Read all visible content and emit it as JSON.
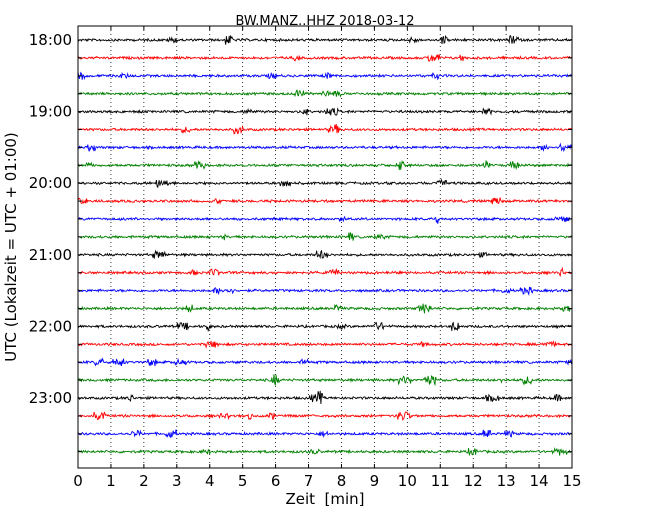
{
  "chart_data": {
    "type": "line",
    "title": "BW.MANZ..HHZ 2018-03-12",
    "xlabel": "Zeit  [min]",
    "ylabel": "UTC (Lokalzeit = UTC + 01:00)",
    "xlim": [
      0,
      15
    ],
    "x_ticks": [
      0,
      1,
      2,
      3,
      4,
      5,
      6,
      7,
      8,
      9,
      10,
      11,
      12,
      13,
      14,
      15
    ],
    "y_tick_labels": [
      "18:00",
      "19:00",
      "20:00",
      "21:00",
      "22:00",
      "23:00"
    ],
    "grid": "x-dotted",
    "series_colors": [
      "#000000",
      "#ff0000",
      "#0000ff",
      "#008000"
    ],
    "traces": [
      "18:00",
      "18:15",
      "18:30",
      "18:45",
      "19:00",
      "19:15",
      "19:30",
      "19:45",
      "20:00",
      "20:15",
      "20:30",
      "20:45",
      "21:00",
      "21:15",
      "21:30",
      "21:45",
      "22:00",
      "22:15",
      "22:30",
      "22:45",
      "23:00",
      "23:15",
      "23:30",
      "23:45"
    ]
  }
}
